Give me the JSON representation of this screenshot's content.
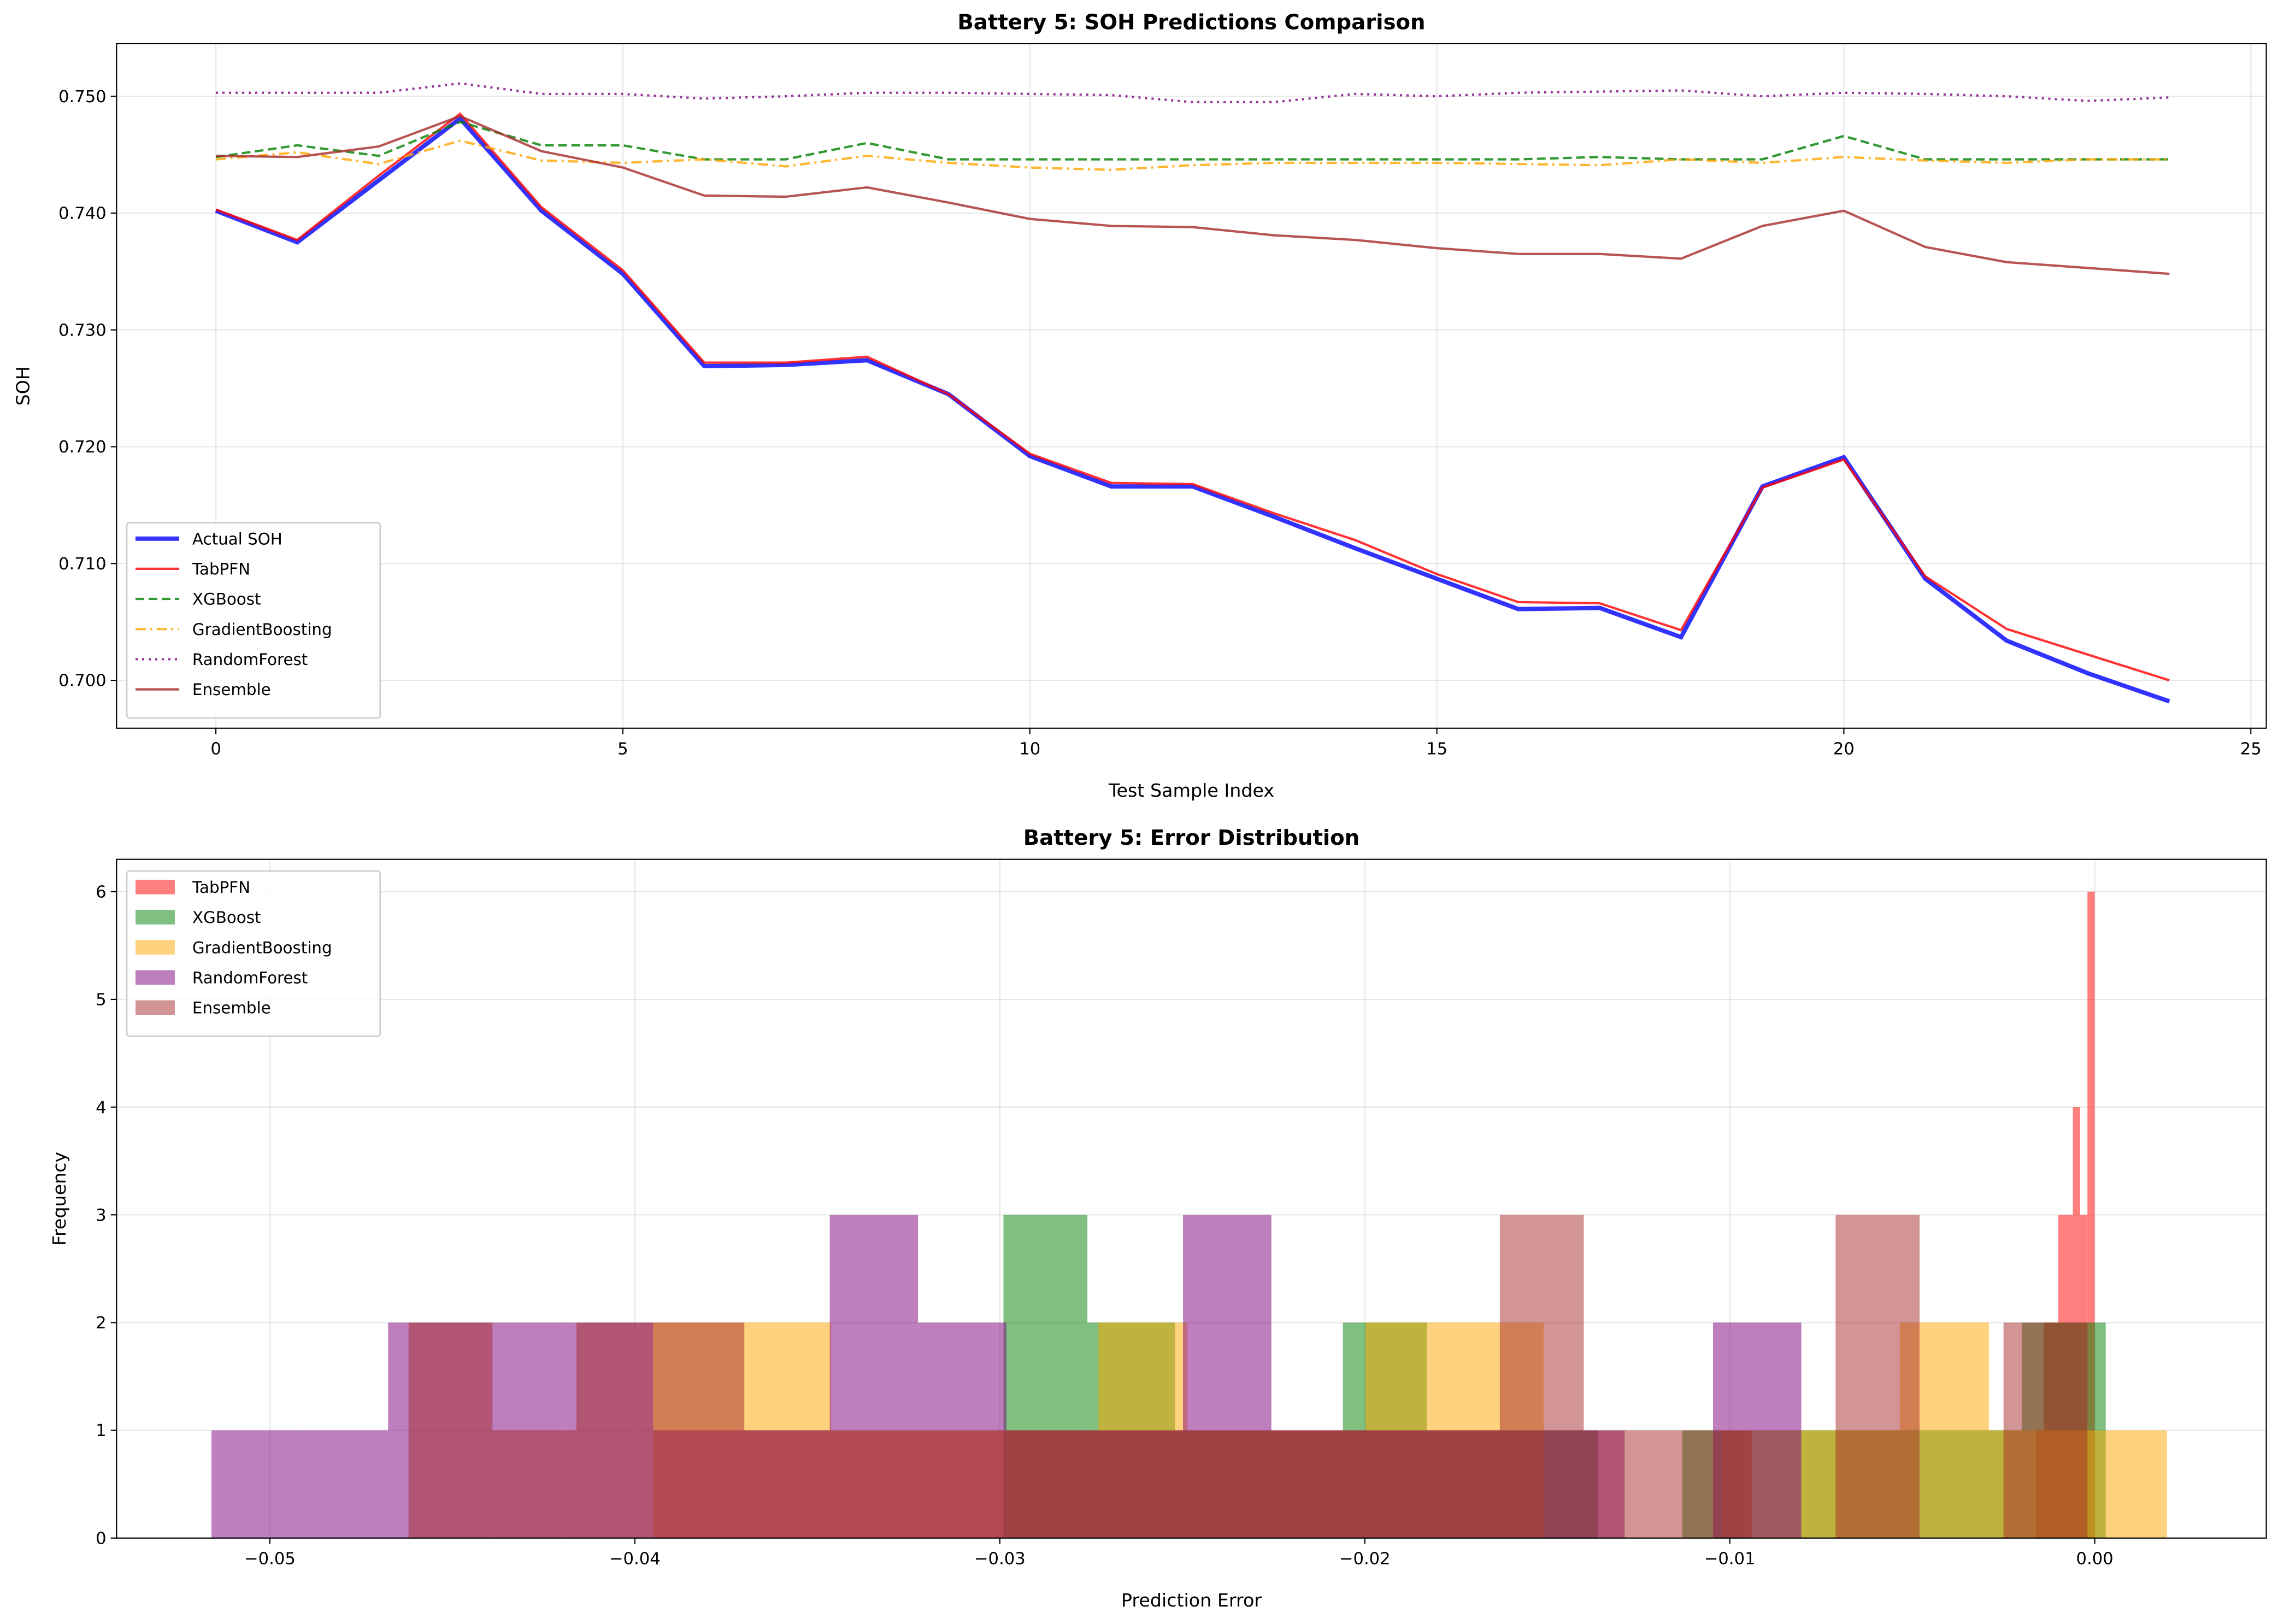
{
  "chart_data": [
    {
      "type": "line",
      "title": "Battery 5: SOH Predictions Comparison",
      "xlabel": "Test Sample Index",
      "ylabel": "SOH",
      "x": [
        0,
        1,
        2,
        3,
        4,
        5,
        6,
        7,
        8,
        9,
        10,
        11,
        12,
        13,
        14,
        15,
        16,
        17,
        18,
        19,
        20,
        21,
        22,
        23,
        24
      ],
      "series": [
        {
          "name": "Actual SOH",
          "color": "#0000ff",
          "dash": "solid",
          "width": 3,
          "values": [
            0.7402,
            0.7375,
            0.7428,
            0.7481,
            0.7402,
            0.7348,
            0.7269,
            0.727,
            0.7274,
            0.7245,
            0.7192,
            0.7166,
            0.7166,
            0.714,
            0.7113,
            0.7087,
            0.7061,
            0.7062,
            0.7037,
            0.7166,
            0.7191,
            0.7087,
            0.7034,
            0.7006,
            0.6982
          ]
        },
        {
          "name": "TabPFN",
          "color": "#ff0000",
          "dash": "solid",
          "width": 1.6,
          "values": [
            0.7403,
            0.7377,
            0.7432,
            0.7485,
            0.7405,
            0.7351,
            0.7272,
            0.7272,
            0.7277,
            0.7245,
            0.7194,
            0.7169,
            0.7168,
            0.7143,
            0.712,
            0.7091,
            0.7067,
            0.7066,
            0.7043,
            0.7165,
            0.7189,
            0.7089,
            0.7044,
            0.7022,
            0.7
          ]
        },
        {
          "name": "XGBoost",
          "color": "#008000",
          "dash": "dashed",
          "width": 1.6,
          "values": [
            0.7448,
            0.7458,
            0.7449,
            0.7478,
            0.7458,
            0.7458,
            0.7446,
            0.7446,
            0.746,
            0.7446,
            0.7446,
            0.7446,
            0.7446,
            0.7446,
            0.7446,
            0.7446,
            0.7446,
            0.7448,
            0.7446,
            0.7446,
            0.7466,
            0.7446,
            0.7446,
            0.7446,
            0.7446
          ]
        },
        {
          "name": "GradientBoosting",
          "color": "#ffa500",
          "dash": "dashdot",
          "width": 1.6,
          "values": [
            0.7446,
            0.7452,
            0.7442,
            0.7462,
            0.7445,
            0.7443,
            0.7446,
            0.744,
            0.7449,
            0.7443,
            0.7439,
            0.7437,
            0.7441,
            0.7443,
            0.7443,
            0.7443,
            0.7442,
            0.7441,
            0.7446,
            0.7443,
            0.7448,
            0.7445,
            0.7443,
            0.7446,
            0.7446
          ]
        },
        {
          "name": "RandomForest",
          "color": "#800080",
          "dash": "dotted",
          "width": 1.6,
          "values": [
            0.7503,
            0.7503,
            0.7503,
            0.7511,
            0.7502,
            0.7502,
            0.7498,
            0.75,
            0.7503,
            0.7503,
            0.7502,
            0.7501,
            0.7495,
            0.7495,
            0.7502,
            0.75,
            0.7503,
            0.7504,
            0.7505,
            0.75,
            0.7503,
            0.7502,
            0.75,
            0.7496,
            0.7499
          ]
        },
        {
          "name": "Ensemble",
          "color": "#a52a2a",
          "dash": "solid",
          "width": 1.6,
          "values": [
            0.7449,
            0.7448,
            0.7457,
            0.7483,
            0.7453,
            0.7439,
            0.7415,
            0.7414,
            0.7422,
            0.7409,
            0.7395,
            0.7389,
            0.7388,
            0.7381,
            0.7377,
            0.737,
            0.7365,
            0.7365,
            0.7361,
            0.7389,
            0.7402,
            0.7371,
            0.7358,
            0.7353,
            0.7348
          ]
        }
      ],
      "alpha": 0.8,
      "xlim": [
        -1.22,
        25.19
      ],
      "xticks": [
        0,
        5,
        10,
        15,
        20,
        25
      ],
      "ylim": [
        0.6959,
        0.7545
      ],
      "yticks": [
        {
          "value": 0.7,
          "label": "0.700"
        },
        {
          "value": 0.71,
          "label": "0.710"
        },
        {
          "value": 0.72,
          "label": "0.720"
        },
        {
          "value": 0.73,
          "label": "0.730"
        },
        {
          "value": 0.74,
          "label": "0.740"
        },
        {
          "value": 0.75,
          "label": "0.750"
        }
      ],
      "grid": true,
      "legend": "lower left"
    },
    {
      "type": "histogram",
      "title": "Battery 5: Error Distribution",
      "xlabel": "Prediction Error",
      "ylabel": "Frequency",
      "alpha": 0.5,
      "series": [
        {
          "name": "TabPFN",
          "color": "#ff0000",
          "bins": [
            -0.0016,
            -0.0014,
            -0.0012,
            -0.001,
            -0.0008,
            -0.0006,
            -0.0004,
            -0.0002,
            0
          ],
          "values": [
            1,
            2,
            2,
            3,
            3,
            4,
            3,
            6
          ]
        },
        {
          "name": "XGBoost",
          "color": "#008000",
          "bins": [
            -0.0299,
            -0.0276,
            -0.0252,
            -0.0229,
            -0.0206,
            -0.0183,
            -0.0159,
            -0.0136,
            -0.0113,
            -0.0089,
            -0.0066,
            -0.0043,
            -0.002,
            0.0003
          ],
          "values": [
            3,
            2,
            1,
            1,
            2,
            1,
            1,
            0,
            1,
            1,
            1,
            1,
            2
          ]
        },
        {
          "name": "GradientBoosting",
          "color": "#ffa500",
          "bins": [
            -0.0395,
            -0.03706,
            -0.03462,
            -0.03218,
            -0.02974,
            -0.0273,
            -0.02486,
            -0.02242,
            -0.01998,
            -0.01754,
            -0.0151,
            -0.01266,
            -0.01022,
            -0.00778,
            -0.00534,
            -0.0029,
            -0.00046,
            0.00198
          ],
          "values": [
            2,
            2,
            1,
            1,
            1,
            2,
            1,
            1,
            2,
            2,
            0,
            0,
            1,
            1,
            2,
            1,
            1
          ]
        },
        {
          "name": "RandomForest",
          "color": "#800080",
          "bins": [
            -0.0516,
            -0.04918,
            -0.04676,
            -0.04434,
            -0.04192,
            -0.0395,
            -0.03708,
            -0.03466,
            -0.03224,
            -0.02982,
            -0.0274,
            -0.02498,
            -0.02256,
            -0.02014,
            -0.01772,
            -0.0153,
            -0.01288,
            -0.01046,
            -0.00804
          ],
          "values": [
            1,
            1,
            2,
            2,
            2,
            1,
            1,
            3,
            2,
            1,
            1,
            3,
            1,
            1,
            1,
            1,
            0,
            2
          ]
        },
        {
          "name": "Ensemble",
          "color": "#a52a2a",
          "bins": [
            -0.0462,
            -0.0439,
            -0.0416,
            -0.0393,
            -0.037,
            -0.0347,
            -0.0324,
            -0.0301,
            -0.0278,
            -0.0255,
            -0.0232,
            -0.0209,
            -0.0186,
            -0.0163,
            -0.014,
            -0.0117,
            -0.0094,
            -0.0071,
            -0.0048,
            -0.0025,
            -0.0002
          ],
          "values": [
            2,
            1,
            2,
            2,
            1,
            1,
            1,
            1,
            1,
            1,
            1,
            1,
            1,
            3,
            1,
            1,
            0,
            3,
            0,
            2
          ]
        }
      ],
      "xlim": [
        -0.0542,
        0.0047
      ],
      "xticks": [
        {
          "value": -0.05,
          "label": "−0.05"
        },
        {
          "value": -0.04,
          "label": "−0.04"
        },
        {
          "value": -0.03,
          "label": "−0.03"
        },
        {
          "value": -0.02,
          "label": "−0.02"
        },
        {
          "value": -0.01,
          "label": "−0.01"
        },
        {
          "value": 0,
          "label": "0.00"
        }
      ],
      "ylim": [
        0,
        6.3
      ],
      "yticks": [
        0,
        1,
        2,
        3,
        4,
        5,
        6
      ],
      "grid": true,
      "legend": "upper left"
    }
  ]
}
